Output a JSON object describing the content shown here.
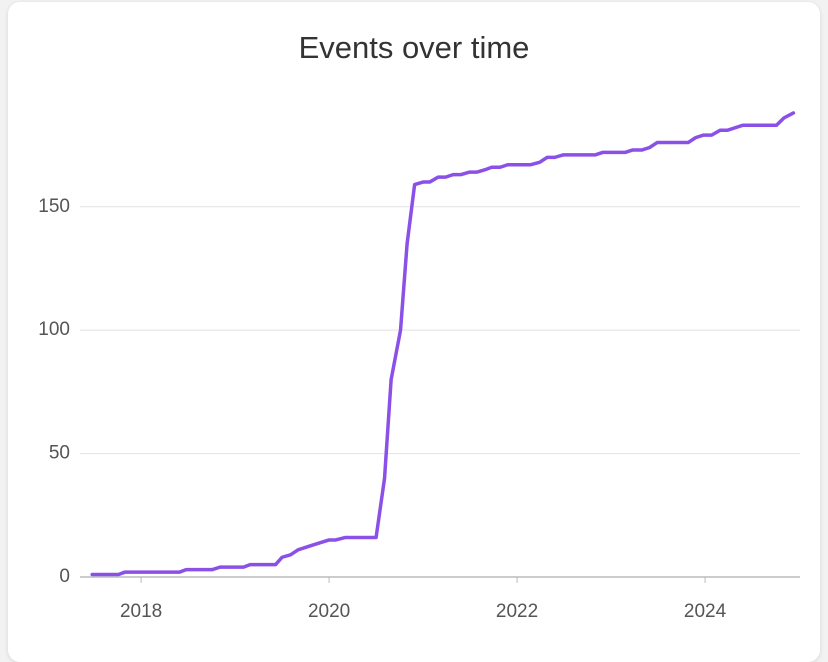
{
  "chart_data": {
    "type": "line",
    "title": "Events over time",
    "x": [
      2017.48,
      2017.76,
      2017.83,
      2018.41,
      2018.48,
      2018.76,
      2018.84,
      2019.09,
      2019.16,
      2019.43,
      2019.5,
      2019.59,
      2019.67,
      2019.83,
      2020.0,
      2020.07,
      2020.17,
      2020.5,
      2020.59,
      2020.66,
      2020.76,
      2020.83,
      2020.91,
      2021.0,
      2021.07,
      2021.16,
      2021.24,
      2021.32,
      2021.4,
      2021.49,
      2021.57,
      2021.66,
      2021.73,
      2021.82,
      2021.9,
      2022.14,
      2022.24,
      2022.32,
      2022.4,
      2022.49,
      2022.83,
      2022.91,
      2023.15,
      2023.23,
      2023.33,
      2023.41,
      2023.49,
      2023.82,
      2023.9,
      2023.98,
      2024.07,
      2024.16,
      2024.24,
      2024.4,
      2024.76,
      2024.84,
      2024.94
    ],
    "series": [
      {
        "name": "Events",
        "color": "#8a50e8",
        "values": [
          1,
          1,
          2,
          2,
          3,
          3,
          4,
          4,
          5,
          5,
          8,
          9,
          11,
          13,
          15,
          15,
          16,
          16,
          40,
          80,
          100,
          135,
          159,
          160,
          160,
          162,
          162,
          163,
          163,
          164,
          164,
          165,
          166,
          166,
          167,
          167,
          168,
          170,
          170,
          171,
          171,
          172,
          172,
          173,
          173,
          174,
          176,
          176,
          178,
          179,
          179,
          181,
          181,
          183,
          183,
          186,
          188
        ]
      }
    ],
    "xlim": [
      2017.35,
      2025.01
    ],
    "xticks": [
      2018,
      2020,
      2022,
      2024
    ],
    "ylim": [
      0,
      190
    ],
    "yticks": [
      0,
      50,
      100,
      150
    ],
    "grid": true
  }
}
